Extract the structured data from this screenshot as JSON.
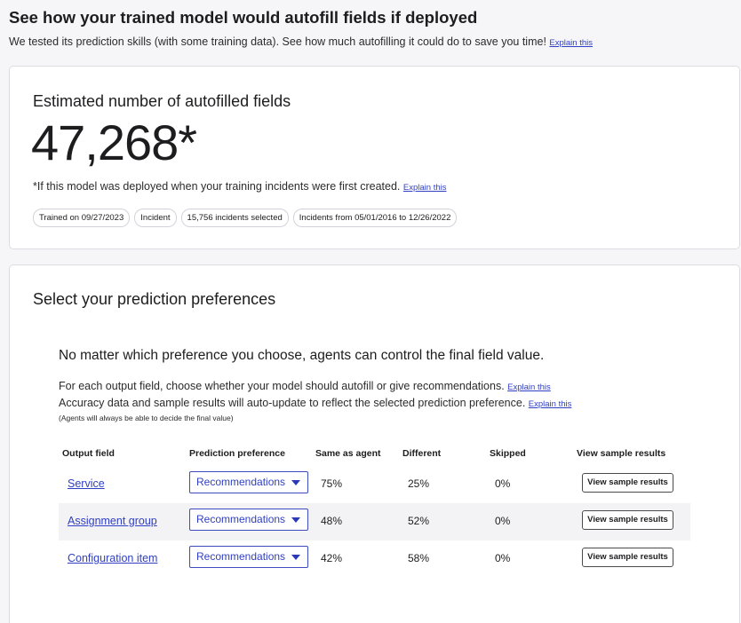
{
  "header": {
    "title": "See how your trained model would autofill fields if deployed",
    "subtitle": "We tested its prediction skills (with some training data). See how much autofilling it could do to save you time!",
    "explain": "Explain this"
  },
  "estimate": {
    "title": "Estimated number of autofilled fields",
    "number": "47,268*",
    "note": "*If this model was deployed when your training incidents were first created.",
    "explain": "Explain this",
    "chips": [
      "Trained on 09/27/2023",
      "Incident",
      "15,756 incidents selected",
      "Incidents from 05/01/2016 to 12/26/2022"
    ]
  },
  "preferences": {
    "title": "Select your prediction preferences",
    "heading": "No matter which preference you choose, agents can control the final field value.",
    "line1": "For each output field, choose whether your model should autofill or give recommendations.",
    "line2": "Accuracy data and sample results will auto-update to reflect the selected prediction preference.",
    "explain": "Explain this",
    "small_note": "(Agents will always be able to decide the final value)",
    "table": {
      "headers": {
        "output_field": "Output field",
        "prediction_preference": "Prediction preference",
        "same_as_agent": "Same as agent",
        "different": "Different",
        "skipped": "Skipped",
        "view_sample": "View sample results"
      },
      "rows": [
        {
          "field": "Service",
          "preference": "Recommendations",
          "same": "75%",
          "different": "25%",
          "skipped": "0%",
          "button": "View sample results"
        },
        {
          "field": "Assignment group",
          "preference": "Recommendations",
          "same": "48%",
          "different": "52%",
          "skipped": "0%",
          "button": "View sample results"
        },
        {
          "field": "Configuration item",
          "preference": "Recommendations",
          "same": "42%",
          "different": "58%",
          "skipped": "0%",
          "button": "View sample results"
        }
      ]
    }
  }
}
